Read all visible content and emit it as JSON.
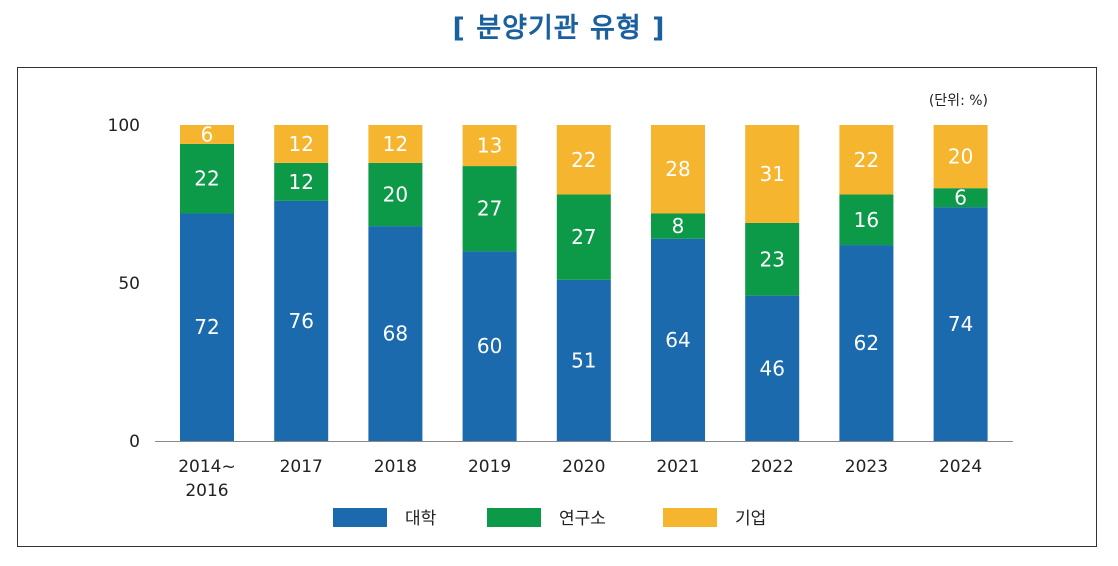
{
  "title": "[ 분양기관 유형 ]",
  "unit_label": "(단위: %)",
  "colors": {
    "series": [
      "#1a6aad",
      "#0c9a48",
      "#f6b52f"
    ],
    "label": "#ffffff",
    "axis": "#222222"
  },
  "chart_data": {
    "type": "bar",
    "stacked": true,
    "categories": [
      "2014~\n2016",
      "2017",
      "2018",
      "2019",
      "2020",
      "2021",
      "2022",
      "2023",
      "2024"
    ],
    "series": [
      {
        "name": "대학",
        "values": [
          72,
          76,
          68,
          60,
          51,
          64,
          46,
          62,
          74
        ]
      },
      {
        "name": "연구소",
        "values": [
          22,
          12,
          20,
          27,
          27,
          8,
          23,
          16,
          6
        ]
      },
      {
        "name": "기업",
        "values": [
          6,
          12,
          12,
          13,
          22,
          28,
          31,
          22,
          20
        ]
      }
    ],
    "ylim": [
      0,
      100
    ],
    "yticks": [
      0,
      50,
      100
    ],
    "grid": false,
    "legend": "bottom"
  }
}
